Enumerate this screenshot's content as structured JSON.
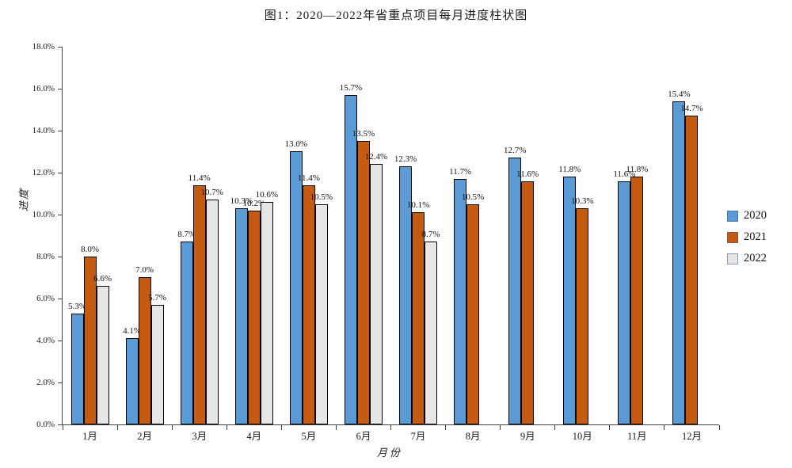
{
  "chart_data": {
    "type": "bar",
    "title": "图1：2020—2022年省重点项目每月进度柱状图",
    "xlabel": "月份",
    "ylabel": "进度",
    "categories": [
      "1月",
      "2月",
      "3月",
      "4月",
      "5月",
      "6月",
      "7月",
      "8月",
      "9月",
      "10月",
      "11月",
      "12月"
    ],
    "series": [
      {
        "name": "2020",
        "color": "#5b9bd5",
        "values": [
          5.3,
          4.1,
          8.7,
          10.3,
          13.0,
          15.7,
          12.3,
          11.7,
          12.7,
          11.8,
          11.6,
          15.4
        ]
      },
      {
        "name": "2021",
        "color": "#c55a11",
        "values": [
          8.0,
          7.0,
          11.4,
          10.2,
          11.4,
          13.5,
          10.1,
          10.5,
          11.6,
          10.3,
          11.8,
          14.7
        ]
      },
      {
        "name": "2022",
        "color": "#e7e6e6",
        "values": [
          6.6,
          5.7,
          10.7,
          10.6,
          10.5,
          12.4,
          8.7,
          null,
          null,
          null,
          null,
          null
        ]
      }
    ],
    "ylim": [
      0,
      18
    ],
    "ytick_step": 2,
    "y_tick_labels": [
      "0.0%",
      "2.0%",
      "4.0%",
      "6.0%",
      "8.0%",
      "10.0%",
      "12.0%",
      "14.0%",
      "16.0%",
      "18.0%"
    ],
    "data_labels": true,
    "data_label_format": "0.0%",
    "legend_position": "right",
    "legend_entries": [
      "2020",
      "2021",
      "2022"
    ],
    "grid": false,
    "bar_border_color": "#000000"
  }
}
